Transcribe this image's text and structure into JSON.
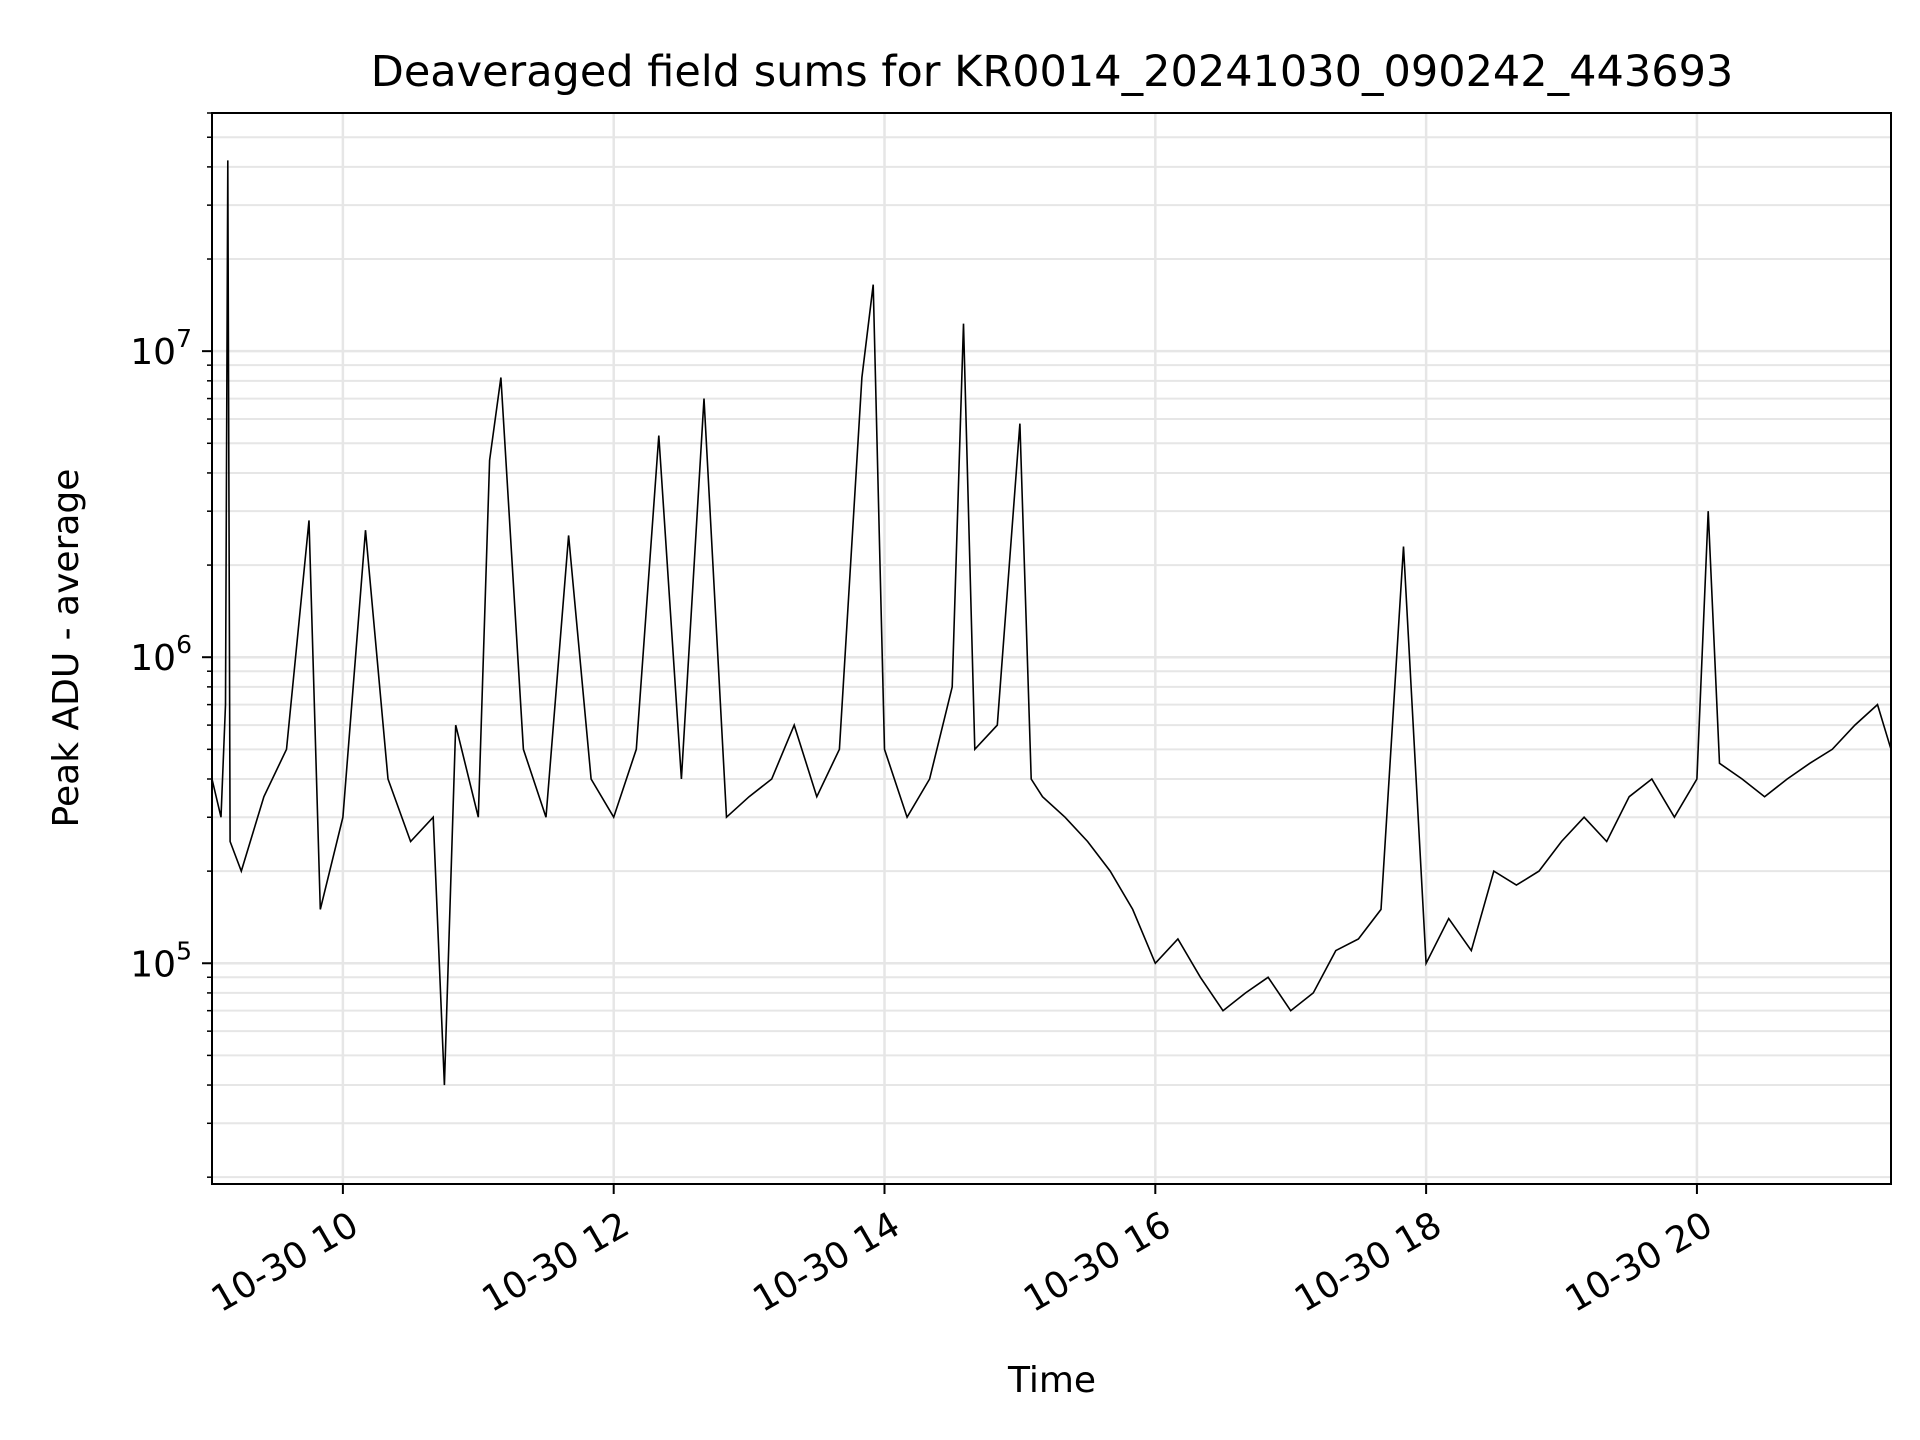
{
  "chart_data": {
    "type": "line",
    "title": "Deaveraged field sums for KR0014_20241030_090242_443693",
    "xlabel": "Time",
    "ylabel": "Peak ADU - average",
    "y_scale": "log",
    "ylim": [
      19000,
      60000000
    ],
    "xlim": [
      "2024-10-30 09:02",
      "2024-10-30 21:26"
    ],
    "grid": true,
    "line_color": "#000000",
    "grid_color": "#e6e6e6",
    "x_ticks": [
      "10-30 10",
      "10-30 12",
      "10-30 14",
      "10-30 16",
      "10-30 18",
      "10-30 20"
    ],
    "y_ticks": [
      {
        "base": "10",
        "exp": "5",
        "value": 100000
      },
      {
        "base": "10",
        "exp": "6",
        "value": 1000000
      },
      {
        "base": "10",
        "exp": "7",
        "value": 10000000
      }
    ],
    "series": [
      {
        "x": [
          "2024-10-30 09:02",
          "2024-10-30 09:06",
          "2024-10-30 09:08",
          "2024-10-30 09:09",
          "2024-10-30 09:10",
          "2024-10-30 09:15",
          "2024-10-30 09:25",
          "2024-10-30 09:35",
          "2024-10-30 09:45",
          "2024-10-30 09:50",
          "2024-10-30 10:00",
          "2024-10-30 10:10",
          "2024-10-30 10:20",
          "2024-10-30 10:30",
          "2024-10-30 10:40",
          "2024-10-30 10:45",
          "2024-10-30 10:50",
          "2024-10-30 11:00",
          "2024-10-30 11:05",
          "2024-10-30 11:10",
          "2024-10-30 11:20",
          "2024-10-30 11:30",
          "2024-10-30 11:40",
          "2024-10-30 11:50",
          "2024-10-30 12:00",
          "2024-10-30 12:10",
          "2024-10-30 12:20",
          "2024-10-30 12:30",
          "2024-10-30 12:40",
          "2024-10-30 12:50",
          "2024-10-30 13:00",
          "2024-10-30 13:10",
          "2024-10-30 13:20",
          "2024-10-30 13:30",
          "2024-10-30 13:40",
          "2024-10-30 13:50",
          "2024-10-30 13:55",
          "2024-10-30 14:00",
          "2024-10-30 14:10",
          "2024-10-30 14:20",
          "2024-10-30 14:30",
          "2024-10-30 14:35",
          "2024-10-30 14:40",
          "2024-10-30 14:50",
          "2024-10-30 15:00",
          "2024-10-30 15:05",
          "2024-10-30 15:10",
          "2024-10-30 15:20",
          "2024-10-30 15:30",
          "2024-10-30 15:40",
          "2024-10-30 15:50",
          "2024-10-30 16:00",
          "2024-10-30 16:10",
          "2024-10-30 16:20",
          "2024-10-30 16:30",
          "2024-10-30 16:40",
          "2024-10-30 16:50",
          "2024-10-30 17:00",
          "2024-10-30 17:10",
          "2024-10-30 17:20",
          "2024-10-30 17:30",
          "2024-10-30 17:40",
          "2024-10-30 17:50",
          "2024-10-30 18:00",
          "2024-10-30 18:10",
          "2024-10-30 18:20",
          "2024-10-30 18:30",
          "2024-10-30 18:40",
          "2024-10-30 18:50",
          "2024-10-30 19:00",
          "2024-10-30 19:10",
          "2024-10-30 19:20",
          "2024-10-30 19:30",
          "2024-10-30 19:40",
          "2024-10-30 19:50",
          "2024-10-30 20:00",
          "2024-10-30 20:05",
          "2024-10-30 20:10",
          "2024-10-30 20:20",
          "2024-10-30 20:30",
          "2024-10-30 20:40",
          "2024-10-30 20:50",
          "2024-10-30 21:00",
          "2024-10-30 21:10",
          "2024-10-30 21:20",
          "2024-10-30 21:26"
        ],
        "y": [
          400000,
          300000,
          700000,
          42000000,
          250000,
          200000,
          350000,
          500000,
          2800000,
          150000,
          300000,
          2600000,
          400000,
          250000,
          300000,
          40000,
          600000,
          300000,
          4400000,
          8200000,
          500000,
          300000,
          2500000,
          400000,
          300000,
          500000,
          5300000,
          400000,
          7000000,
          300000,
          350000,
          400000,
          600000,
          350000,
          500000,
          8200000,
          16500000,
          500000,
          300000,
          400000,
          800000,
          12300000,
          500000,
          600000,
          5800000,
          400000,
          350000,
          300000,
          250000,
          200000,
          150000,
          100000,
          120000,
          90000,
          70000,
          80000,
          90000,
          70000,
          80000,
          110000,
          120000,
          150000,
          2300000,
          100000,
          140000,
          110000,
          200000,
          180000,
          200000,
          250000,
          300000,
          250000,
          350000,
          400000,
          300000,
          400000,
          3000000,
          450000,
          400000,
          350000,
          400000,
          450000,
          500000,
          600000,
          700000,
          500000
        ]
      }
    ]
  }
}
